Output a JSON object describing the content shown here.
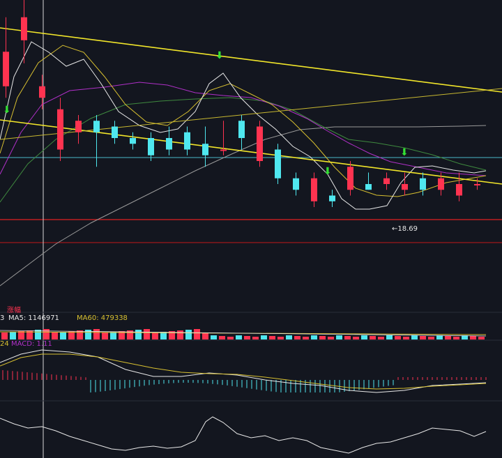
{
  "colors": {
    "background": "#13161f",
    "up": "#ff3350",
    "down": "#4fe7ef",
    "trend": "#f2e62a",
    "ma_white": "#e8e8e8",
    "ma_yellow": "#d8c030",
    "ma_purple": "#b030c8",
    "ma_green": "#3f8a3f",
    "ma_gray": "#9a9a9a",
    "cyan_line": "#4ab8c8",
    "red_line": "#e02020",
    "arrow": "#33e033"
  },
  "price_panel": {
    "low_annotation": "←18.69"
  },
  "volume_panel": {
    "tag": "涨幅",
    "ma5_label": "MA5: 1146971",
    "ma60_label": "MA60: 479338",
    "left_fragment": "3"
  },
  "macd_panel": {
    "left_fragment": "24",
    "macd_label": "MACD: 1.11"
  },
  "chart_data": {
    "type": "candlestick",
    "candles": [
      {
        "o": 40,
        "c": 46,
        "h": 52,
        "l": 38
      },
      {
        "o": 48,
        "c": 52,
        "h": 56,
        "l": 44
      },
      {
        "o": 38,
        "c": 40,
        "h": 42,
        "l": 36
      },
      {
        "o": 29,
        "c": 36,
        "h": 38,
        "l": 27
      },
      {
        "o": 32,
        "c": 34,
        "h": 35,
        "l": 30
      },
      {
        "o": 34,
        "c": 32,
        "h": 35,
        "l": 26
      },
      {
        "o": 33,
        "c": 31,
        "h": 34,
        "l": 30
      },
      {
        "o": 31,
        "c": 30,
        "h": 32,
        "l": 29
      },
      {
        "o": 31,
        "c": 28,
        "h": 32,
        "l": 27
      },
      {
        "o": 31,
        "c": 29,
        "h": 33,
        "l": 28
      },
      {
        "o": 32,
        "c": 29,
        "h": 33,
        "l": 28
      },
      {
        "o": 30,
        "c": 28,
        "h": 33,
        "l": 26
      },
      {
        "o": 29,
        "c": 29,
        "h": 34,
        "l": 28
      },
      {
        "o": 34,
        "c": 31,
        "h": 35,
        "l": 29
      },
      {
        "o": 27,
        "c": 33,
        "h": 34,
        "l": 26
      },
      {
        "o": 29,
        "c": 24,
        "h": 30,
        "l": 23
      },
      {
        "o": 24,
        "c": 22,
        "h": 25,
        "l": 21
      },
      {
        "o": 20,
        "c": 24,
        "h": 25,
        "l": 19
      },
      {
        "o": 21,
        "c": 20,
        "h": 22,
        "l": 19
      },
      {
        "o": 22,
        "c": 26,
        "h": 27,
        "l": 21
      },
      {
        "o": 23,
        "c": 22,
        "h": 25,
        "l": 22
      },
      {
        "o": 23,
        "c": 24,
        "h": 25,
        "l": 22
      },
      {
        "o": 22,
        "c": 23,
        "h": 25,
        "l": 21
      },
      {
        "o": 24,
        "c": 22,
        "h": 25,
        "l": 21
      },
      {
        "o": 22,
        "c": 24,
        "h": 25,
        "l": 21
      },
      {
        "o": 21,
        "c": 23,
        "h": 25,
        "l": 20
      },
      {
        "o": 23,
        "c": 23,
        "h": 24,
        "l": 22
      }
    ],
    "series": [],
    "annotations": [
      "←18.69"
    ]
  }
}
